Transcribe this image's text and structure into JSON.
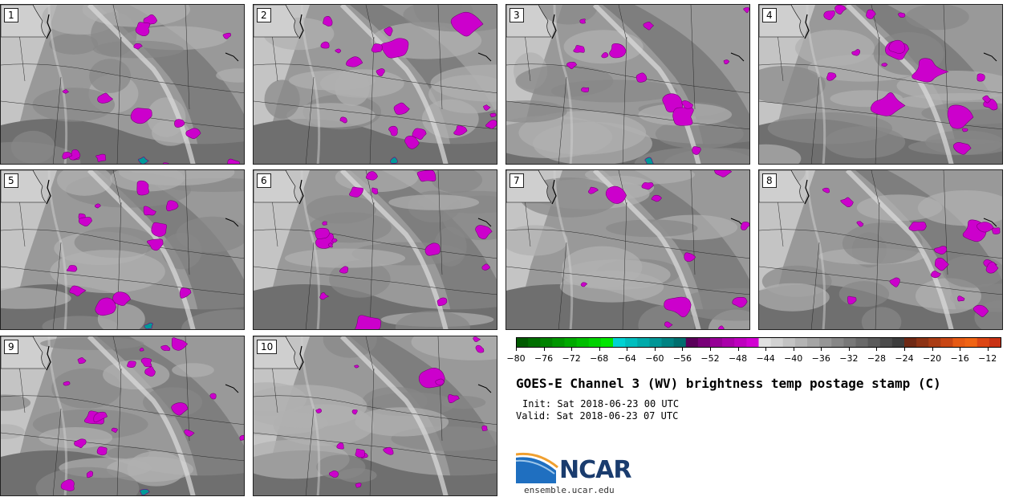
{
  "title": "GOES-E Channel 3 (WV) brightness temp postage stamp (C)",
  "init": "Init: Sat 2018-06-23 00 UTC",
  "valid": "Valid: Sat 2018-06-23 07 UTC",
  "logo_text": "NCAR",
  "site": "ensemble.ucar.edu",
  "colors": {
    "bins": [
      "#005a00",
      "#006e00",
      "#008200",
      "#009600",
      "#00aa00",
      "#00be00",
      "#00d200",
      "#00e600",
      "#00d2d2",
      "#00bebe",
      "#00aaaa",
      "#009696",
      "#008282",
      "#006e6e",
      "#5a005a",
      "#780078",
      "#960096",
      "#aa00aa",
      "#be00be",
      "#d200d2",
      "#e1e1e1",
      "#d2d2d2",
      "#c3c3c3",
      "#b4b4b4",
      "#a5a5a5",
      "#969696",
      "#878787",
      "#787878",
      "#696969",
      "#5a5a5a",
      "#4b4b4b",
      "#3c3c3c",
      "#6e2814",
      "#8c3214",
      "#aa3c14",
      "#c84614",
      "#e65a14",
      "#f06414",
      "#dc4614",
      "#c83214"
    ],
    "moist": "#cc00cc",
    "cold": "#009999"
  },
  "colorbar": {
    "min": -80,
    "max": -10,
    "ticks": [
      -80,
      -76,
      -72,
      -68,
      -64,
      -60,
      -56,
      -52,
      -48,
      -44,
      -40,
      -36,
      -32,
      -28,
      -24,
      -20,
      -16,
      -12
    ],
    "tick_labels": [
      "−80",
      "−76",
      "−72",
      "−68",
      "−64",
      "−60",
      "−56",
      "−52",
      "−48",
      "−44",
      "−40",
      "−36",
      "−32",
      "−28",
      "−24",
      "−20",
      "−16",
      "−12"
    ]
  },
  "panels": [
    {
      "label": "1"
    },
    {
      "label": "2"
    },
    {
      "label": "3"
    },
    {
      "label": "4"
    },
    {
      "label": "5"
    },
    {
      "label": "6"
    },
    {
      "label": "7"
    },
    {
      "label": "8"
    },
    {
      "label": "9"
    },
    {
      "label": "10"
    }
  ]
}
